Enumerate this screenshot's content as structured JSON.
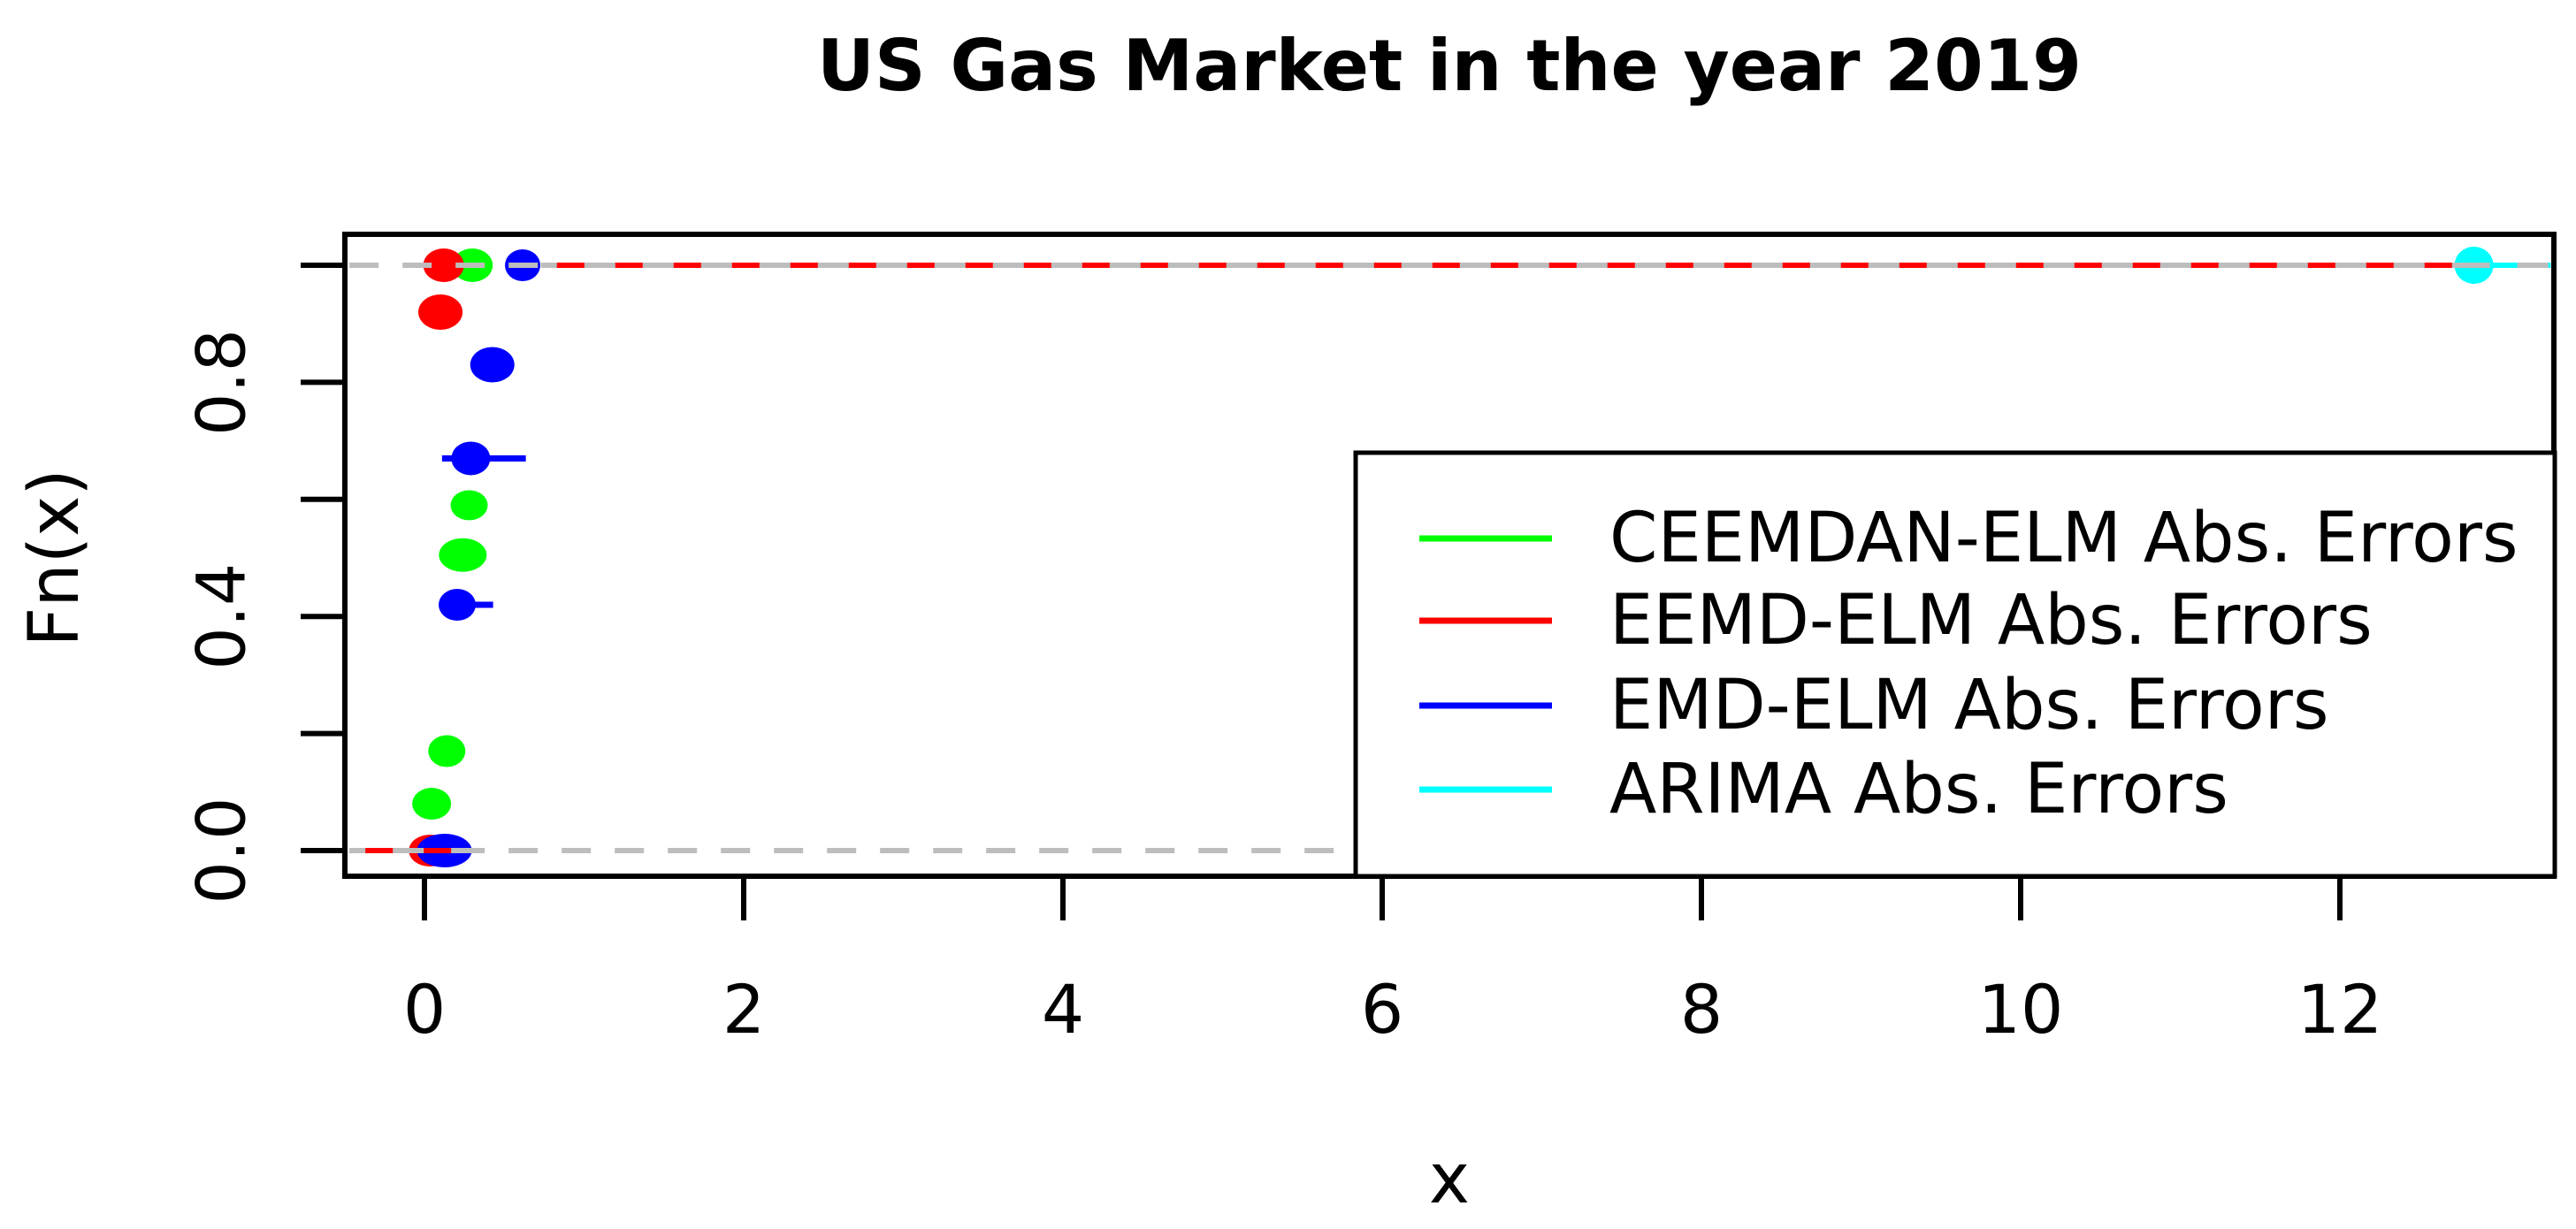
{
  "chart_data": {
    "type": "scatter",
    "subtype": "ecdf",
    "title": "US Gas Market in the year 2019",
    "xlabel": "x",
    "ylabel": "Fn(x)",
    "xlim": [
      -0.47,
      13.32
    ],
    "ylim": [
      0.0,
      1.0
    ],
    "x_ticks": [
      0,
      2,
      4,
      6,
      8,
      10,
      12
    ],
    "y_ticks": [
      0.0,
      0.2,
      0.4,
      0.6,
      0.8,
      1.0
    ],
    "y_tick_labels": [
      {
        "value": 0.0,
        "label": "0.0"
      },
      {
        "value": 0.4,
        "label": "0.4"
      },
      {
        "value": 0.8,
        "label": "0.8"
      }
    ],
    "grid": false,
    "legend_position": "right-bottom-inside",
    "colors": {
      "gray_dash": "#bdbdbd",
      "axis": "#000000",
      "background": "#ffffff"
    },
    "series": [
      {
        "name": "CEEMDAN-ELM Abs. Errors",
        "color": "#00ff00",
        "points": [
          {
            "x": 0.3,
            "fn": 1.0,
            "rx": 23,
            "ry": 19
          },
          {
            "x": 0.28,
            "fn": 0.59,
            "rx": 21,
            "ry": 17
          },
          {
            "x": 0.24,
            "fn": 0.505,
            "rx": 27,
            "ry": 19
          },
          {
            "x": 0.14,
            "fn": 0.17,
            "rx": 21,
            "ry": 18
          },
          {
            "x": 0.045,
            "fn": 0.08,
            "rx": 22,
            "ry": 18
          }
        ],
        "segments": []
      },
      {
        "name": "EEMD-ELM Abs. Errors",
        "color": "#ff0000",
        "points": [
          {
            "x": 0.12,
            "fn": 1.0,
            "rx": 23,
            "ry": 19
          },
          {
            "x": 0.1,
            "fn": 0.92,
            "rx": 25,
            "ry": 20
          },
          {
            "x": 0.035,
            "fn": 0.0,
            "rx": 24,
            "ry": 18
          }
        ],
        "segments": []
      },
      {
        "name": "EMD-ELM Abs. Errors",
        "color": "#0000ff",
        "points": [
          {
            "x": 0.615,
            "fn": 1.0,
            "rx": 20,
            "ry": 18
          },
          {
            "x": 0.425,
            "fn": 0.83,
            "rx": 25,
            "ry": 20
          },
          {
            "x": 0.29,
            "fn": 0.67,
            "rx": 22,
            "ry": 19
          },
          {
            "x": 0.205,
            "fn": 0.42,
            "rx": 21,
            "ry": 18
          },
          {
            "x": 0.125,
            "fn": 0.0,
            "rx": 31,
            "ry": 19
          }
        ],
        "segments": [
          {
            "fn": 0.67,
            "x1": 0.11,
            "x2": 0.635
          },
          {
            "fn": 0.42,
            "x1": 0.11,
            "x2": 0.43
          }
        ]
      },
      {
        "name": "ARIMA Abs. Errors",
        "color": "#00ffff",
        "points": [
          {
            "x": 12.84,
            "fn": 1.0,
            "rx": 22,
            "ry": 21
          }
        ],
        "segments": []
      }
    ],
    "reference_lines": [
      {
        "fn": 1.0,
        "from": -0.47,
        "to": 13.32,
        "style": "dashed",
        "color": "#bdbdbd"
      },
      {
        "fn": 0.0,
        "from": -0.47,
        "to": 5.83,
        "style": "dashed",
        "color": "#bdbdbd"
      }
    ],
    "line_extensions": [
      {
        "series": "EEMD-ELM Abs. Errors",
        "fn": 1.0,
        "from": 0.73,
        "to": 12.84,
        "color": "#ff0000"
      },
      {
        "series": "ARIMA Abs. Errors",
        "fn": 1.0,
        "from": 12.84,
        "to": 13.32,
        "color": "#00ffff"
      },
      {
        "series": "EEMD-ELM Abs. Errors",
        "fn": 0.0,
        "from": -0.47,
        "to": 0.36,
        "color": "#ff0000"
      }
    ]
  }
}
